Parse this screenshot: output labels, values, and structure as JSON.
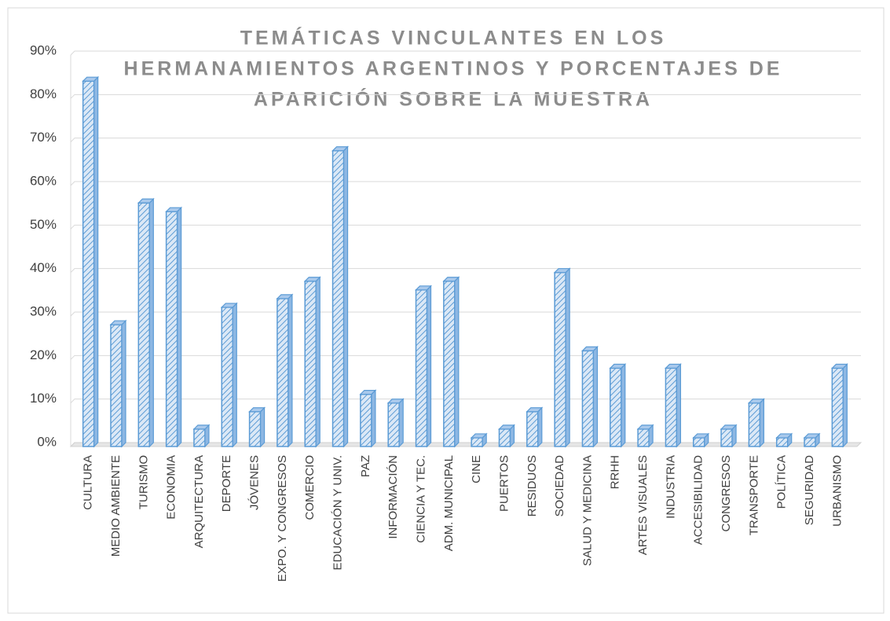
{
  "chart_data": {
    "type": "bar",
    "title": [
      "TEMÁTICAS VINCULANTES EN LOS",
      "HERMANAMIENTOS ARGENTINOS Y PORCENTAJES DE",
      "APARICIÓN SOBRE LA MUESTRA"
    ],
    "categories": [
      "CULTURA",
      "MEDIO AMBIENTE",
      "TURISMO",
      "ECONOMIA",
      "ARQUITECTURA",
      "DEPORTE",
      "JÓVENES",
      "EXPO. Y CONGRESOS",
      "COMERCIO",
      "EDUCACIÓN Y UNIV.",
      "PAZ",
      "INFORMACIÓN",
      "CIENCIA Y TEC.",
      "ADM. MUNICIPAL",
      "CINE",
      "PUERTOS",
      "RESIDUOS",
      "SOCIEDAD",
      "SALUD Y MEDICINA",
      "RRHH",
      "ARTES VISUALES",
      "INDUSTRIA",
      "ACCESIBILIDAD",
      "CONGRESOS",
      "TRANSPORTE",
      "POLÍTICA",
      "SEGURIDAD",
      "URBANISMO"
    ],
    "values": [
      84,
      28,
      56,
      54,
      4,
      32,
      8,
      34,
      38,
      68,
      12,
      10,
      36,
      38,
      2,
      4,
      8,
      40,
      22,
      18,
      4,
      18,
      2,
      4,
      10,
      2,
      2,
      18
    ],
    "color": "#5b9bd5",
    "ylim": [
      0,
      90
    ],
    "yticks": [
      {
        "value": 0,
        "label": "0%"
      },
      {
        "value": 10,
        "label": "10%"
      },
      {
        "value": 20,
        "label": "20%"
      },
      {
        "value": 30,
        "label": "30%"
      },
      {
        "value": 40,
        "label": "40%"
      },
      {
        "value": 50,
        "label": "50%"
      },
      {
        "value": 60,
        "label": "60%"
      },
      {
        "value": 70,
        "label": "70%"
      },
      {
        "value": 80,
        "label": "80%"
      },
      {
        "value": 90,
        "label": "90%"
      }
    ],
    "grid": true
  }
}
